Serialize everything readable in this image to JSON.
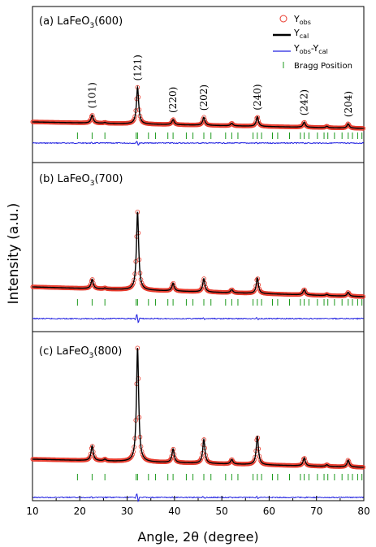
{
  "chart_data": [
    {
      "type": "line",
      "panel_label": "(a) LaFeO",
      "panel_sub": "3",
      "panel_tail": "(600)",
      "xlim": [
        10,
        80
      ],
      "peaks": [
        {
          "x": 22.6,
          "h": 0.11
        },
        {
          "x": 25.3,
          "h": 0.012
        },
        {
          "x": 32.2,
          "h": 0.5
        },
        {
          "x": 39.7,
          "h": 0.07
        },
        {
          "x": 46.2,
          "h": 0.11
        },
        {
          "x": 52.1,
          "h": 0.035
        },
        {
          "x": 57.5,
          "h": 0.13
        },
        {
          "x": 67.4,
          "h": 0.07
        },
        {
          "x": 72.2,
          "h": 0.02
        },
        {
          "x": 76.7,
          "h": 0.06
        }
      ],
      "peak_labels": [
        {
          "hkl": "(101)",
          "x": 22.6
        },
        {
          "hkl": "(121)",
          "x": 32.2
        },
        {
          "hkl": "(220)",
          "x": 39.7
        },
        {
          "hkl": "(202)",
          "x": 46.2
        },
        {
          "hkl": "(240)",
          "x": 57.5
        },
        {
          "hkl": "(242)",
          "x": 67.4
        },
        {
          "hkl": "(204)",
          "x": 76.7
        }
      ],
      "legend": [
        "Y",
        "Y",
        "Y",
        "Bragg Position"
      ],
      "legend_subs": [
        "obs",
        "cal",
        "obs",
        "cal"
      ]
    },
    {
      "type": "line",
      "panel_label": "(b) LaFeO",
      "panel_sub": "3",
      "panel_tail": "(700)",
      "xlim": [
        10,
        80
      ],
      "peaks": [
        {
          "x": 22.6,
          "h": 0.12
        },
        {
          "x": 25.3,
          "h": 0.012
        },
        {
          "x": 32.2,
          "h": 1.0
        },
        {
          "x": 39.7,
          "h": 0.1
        },
        {
          "x": 46.2,
          "h": 0.17
        },
        {
          "x": 52.1,
          "h": 0.04
        },
        {
          "x": 57.5,
          "h": 0.2
        },
        {
          "x": 67.4,
          "h": 0.07
        },
        {
          "x": 72.2,
          "h": 0.015
        },
        {
          "x": 76.7,
          "h": 0.05
        }
      ]
    },
    {
      "type": "line",
      "panel_label": "(c) LaFeO",
      "panel_sub": "3",
      "panel_tail": "(800)",
      "xlim": [
        10,
        80
      ],
      "peaks": [
        {
          "x": 22.6,
          "h": 0.13
        },
        {
          "x": 25.3,
          "h": 0.015
        },
        {
          "x": 32.2,
          "h": 1.0
        },
        {
          "x": 39.7,
          "h": 0.12
        },
        {
          "x": 46.2,
          "h": 0.21
        },
        {
          "x": 52.1,
          "h": 0.04
        },
        {
          "x": 57.5,
          "h": 0.25
        },
        {
          "x": 67.4,
          "h": 0.07
        },
        {
          "x": 72.2,
          "h": 0.015
        },
        {
          "x": 76.7,
          "h": 0.06
        }
      ]
    }
  ],
  "bragg_positions": [
    19.5,
    22.6,
    25.3,
    31.9,
    32.2,
    34.5,
    36.0,
    38.6,
    39.7,
    42.5,
    43.9,
    46.2,
    47.7,
    50.8,
    52.1,
    53.4,
    56.6,
    57.5,
    58.4,
    60.7,
    61.8,
    64.3,
    66.6,
    67.4,
    68.4,
    70.2,
    71.6,
    72.4,
    73.8,
    75.4,
    76.7,
    77.6,
    78.7,
    79.6
  ],
  "xaxis": {
    "label": "Angle, 2θ (degree)",
    "ticks": [
      10,
      20,
      30,
      40,
      50,
      60,
      70,
      80
    ]
  },
  "yaxis": {
    "label": "Intensity (a.u.)"
  },
  "legend_extra": {
    "minus": "-Y"
  },
  "colors": {
    "obs": "#e8392b",
    "cal": "#000000",
    "diff": "#2020e0",
    "bragg": "#1e9a1e"
  }
}
